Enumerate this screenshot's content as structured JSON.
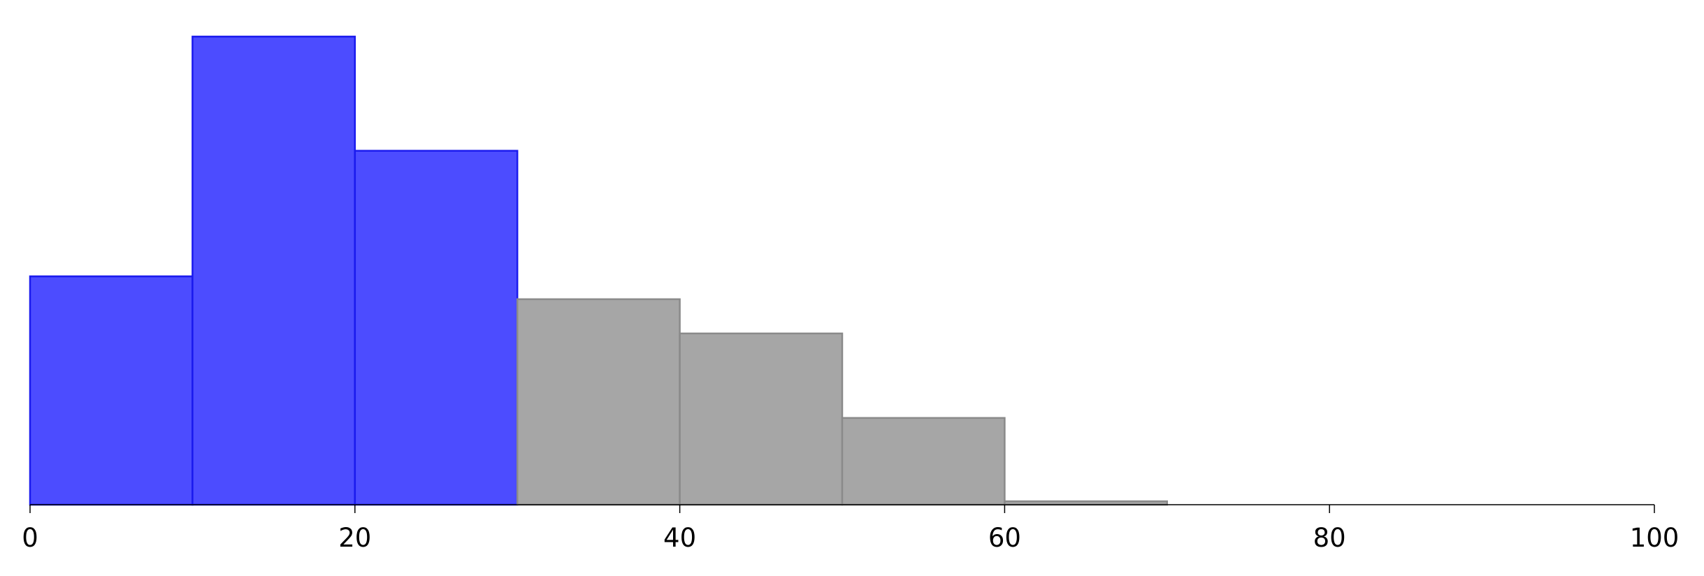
{
  "chart_data": {
    "type": "bar",
    "subtype": "histogram",
    "title": "",
    "xlabel": "",
    "ylabel": "",
    "xlim": [
      0,
      100
    ],
    "ylim": [
      0,
      42
    ],
    "bin_width": 10,
    "y_axis_visible": false,
    "grid": false,
    "x_ticks": [
      "0",
      "20",
      "40",
      "60",
      "80",
      "100"
    ],
    "series": [
      {
        "color": "#4c4cff",
        "edge_color": "#1a1aee",
        "bins": [
          {
            "start": 0,
            "end": 10,
            "value": 20
          },
          {
            "start": 10,
            "end": 20,
            "value": 41
          },
          {
            "start": 20,
            "end": 30,
            "value": 31
          }
        ]
      },
      {
        "color": "#a6a6a6",
        "edge_color": "#8a8a8a",
        "bins": [
          {
            "start": 30,
            "end": 40,
            "value": 18
          },
          {
            "start": 40,
            "end": 50,
            "value": 15
          },
          {
            "start": 50,
            "end": 60,
            "value": 7.6
          },
          {
            "start": 60,
            "end": 70,
            "value": 0.3
          }
        ]
      }
    ]
  }
}
